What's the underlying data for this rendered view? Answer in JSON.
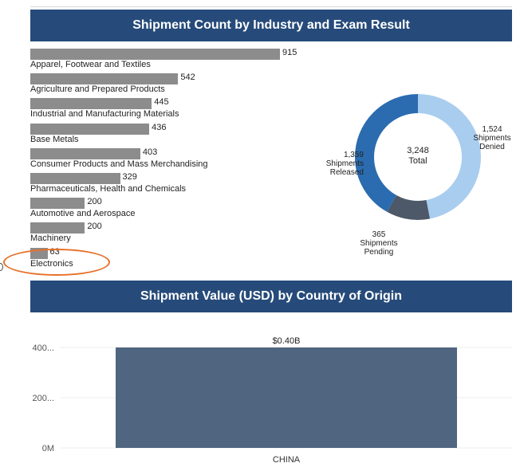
{
  "chart_data": [
    {
      "type": "bar",
      "orientation": "horizontal",
      "title": "Shipment Count by Industry and Exam Result",
      "categories": [
        "Apparel, Footwear and Textiles",
        "Agriculture and Prepared Products",
        "Industrial and Manufacturing Materials",
        "Base Metals",
        "Consumer Products and Mass Merchandising",
        "Pharmaceuticals, Health and Chemicals",
        "Automotive and Aerospace",
        "Machinery",
        "Electronics"
      ],
      "values": [
        915,
        542,
        445,
        436,
        403,
        329,
        200,
        200,
        63
      ],
      "bar_color": "#8c8c8c",
      "xlim": [
        0,
        915
      ]
    },
    {
      "type": "pie",
      "style": "donut",
      "center_value": "3,248",
      "center_label": "Total",
      "slices": [
        {
          "value_label": "1,524",
          "label_lines": [
            "Shipments",
            "Denied"
          ],
          "value": 1524,
          "color": "#a9cdef"
        },
        {
          "value_label": "365",
          "label_lines": [
            "Shipments",
            "Pending"
          ],
          "value": 365,
          "color": "#4d5968"
        },
        {
          "value_label": "1,359",
          "label_lines": [
            "Shipments",
            "Released"
          ],
          "value": 1359,
          "color": "#2b6cb0"
        }
      ]
    },
    {
      "type": "bar",
      "title": "Shipment Value (USD) by Country of Origin",
      "categories": [
        "CHINA"
      ],
      "values": [
        0.4
      ],
      "data_labels": [
        "$0.40B"
      ],
      "y_tick_labels": [
        "0M",
        "200...",
        "400..."
      ],
      "ylim": [
        0,
        0.4
      ],
      "bar_color": "#506580",
      "grid": true
    }
  ]
}
